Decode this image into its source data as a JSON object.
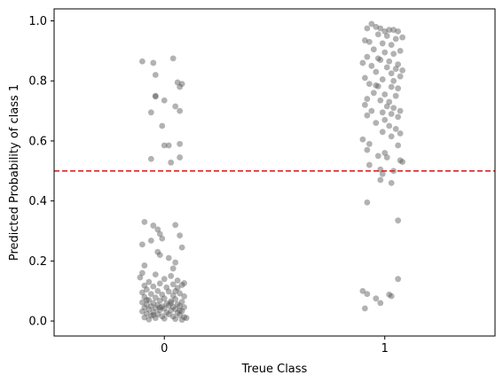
{
  "chart_data": {
    "type": "scatter",
    "title": "",
    "xlabel": "Treue Class",
    "ylabel": "Predicted Probability of class 1",
    "x_ticks": [
      "0",
      "1"
    ],
    "y_ticks": [
      "0.0",
      "0.2",
      "0.4",
      "0.6",
      "0.8",
      "1.0"
    ],
    "xlim": [
      -0.5,
      1.5
    ],
    "ylim": [
      -0.05,
      1.04
    ],
    "grid": false,
    "threshold": {
      "y": 0.5,
      "color": "#d62728",
      "style": "dashed"
    },
    "point_color": "#555555",
    "point_opacity": 0.45,
    "points": [
      {
        "x": -0.1,
        "y": 0.865
      },
      {
        "x": -0.05,
        "y": 0.86
      },
      {
        "x": 0.04,
        "y": 0.875
      },
      {
        "x": -0.04,
        "y": 0.82
      },
      {
        "x": 0.06,
        "y": 0.795
      },
      {
        "x": 0.08,
        "y": 0.79
      },
      {
        "x": 0.07,
        "y": 0.78
      },
      {
        "x": -0.04,
        "y": 0.75
      },
      {
        "x": -0.04,
        "y": 0.748
      },
      {
        "x": 0.0,
        "y": 0.735
      },
      {
        "x": 0.05,
        "y": 0.715
      },
      {
        "x": -0.06,
        "y": 0.695
      },
      {
        "x": 0.07,
        "y": 0.7
      },
      {
        "x": -0.01,
        "y": 0.65
      },
      {
        "x": 0.0,
        "y": 0.585
      },
      {
        "x": 0.02,
        "y": 0.585
      },
      {
        "x": 0.07,
        "y": 0.59
      },
      {
        "x": -0.06,
        "y": 0.54
      },
      {
        "x": 0.07,
        "y": 0.545
      },
      {
        "x": 0.03,
        "y": 0.528
      },
      {
        "x": -0.09,
        "y": 0.33
      },
      {
        "x": -0.05,
        "y": 0.318
      },
      {
        "x": 0.05,
        "y": 0.32
      },
      {
        "x": -0.03,
        "y": 0.305
      },
      {
        "x": -0.02,
        "y": 0.29
      },
      {
        "x": 0.07,
        "y": 0.285
      },
      {
        "x": -0.01,
        "y": 0.275
      },
      {
        "x": -0.06,
        "y": 0.268
      },
      {
        "x": -0.1,
        "y": 0.255
      },
      {
        "x": 0.08,
        "y": 0.245
      },
      {
        "x": -0.03,
        "y": 0.23
      },
      {
        "x": -0.02,
        "y": 0.22
      },
      {
        "x": 0.02,
        "y": 0.21
      },
      {
        "x": 0.05,
        "y": 0.195
      },
      {
        "x": -0.09,
        "y": 0.185
      },
      {
        "x": 0.04,
        "y": 0.175
      },
      {
        "x": -0.1,
        "y": 0.16
      },
      {
        "x": -0.04,
        "y": 0.155
      },
      {
        "x": 0.03,
        "y": 0.15
      },
      {
        "x": -0.11,
        "y": 0.145
      },
      {
        "x": 0.0,
        "y": 0.14
      },
      {
        "x": 0.06,
        "y": 0.135
      },
      {
        "x": -0.07,
        "y": 0.13
      },
      {
        "x": -0.02,
        "y": 0.125
      },
      {
        "x": 0.04,
        "y": 0.122
      },
      {
        "x": 0.08,
        "y": 0.12
      },
      {
        "x": 0.09,
        "y": 0.126
      },
      {
        "x": -0.09,
        "y": 0.118
      },
      {
        "x": -0.05,
        "y": 0.115
      },
      {
        "x": 0.01,
        "y": 0.112
      },
      {
        "x": 0.06,
        "y": 0.11
      },
      {
        "x": -0.08,
        "y": 0.105
      },
      {
        "x": -0.03,
        "y": 0.1
      },
      {
        "x": 0.02,
        "y": 0.098
      },
      {
        "x": -0.1,
        "y": 0.095
      },
      {
        "x": 0.07,
        "y": 0.092
      },
      {
        "x": -0.06,
        "y": 0.09
      },
      {
        "x": -0.01,
        "y": 0.088
      },
      {
        "x": 0.04,
        "y": 0.085
      },
      {
        "x": 0.09,
        "y": 0.082
      },
      {
        "x": -0.09,
        "y": 0.08
      },
      {
        "x": -0.04,
        "y": 0.078
      },
      {
        "x": 0.0,
        "y": 0.075
      },
      {
        "x": 0.05,
        "y": 0.073
      },
      {
        "x": -0.07,
        "y": 0.07
      },
      {
        "x": -0.02,
        "y": 0.068
      },
      {
        "x": 0.03,
        "y": 0.066
      },
      {
        "x": 0.08,
        "y": 0.064
      },
      {
        "x": -0.1,
        "y": 0.062
      },
      {
        "x": -0.05,
        "y": 0.06
      },
      {
        "x": 0.01,
        "y": 0.058
      },
      {
        "x": 0.06,
        "y": 0.056
      },
      {
        "x": -0.08,
        "y": 0.055
      },
      {
        "x": -0.03,
        "y": 0.053
      },
      {
        "x": 0.02,
        "y": 0.052
      },
      {
        "x": 0.07,
        "y": 0.05
      },
      {
        "x": -0.06,
        "y": 0.049
      },
      {
        "x": -0.01,
        "y": 0.048
      },
      {
        "x": 0.04,
        "y": 0.047
      },
      {
        "x": 0.09,
        "y": 0.046
      },
      {
        "x": -0.09,
        "y": 0.045
      },
      {
        "x": -0.04,
        "y": 0.043
      },
      {
        "x": 0.0,
        "y": 0.042
      },
      {
        "x": 0.05,
        "y": 0.04
      },
      {
        "x": -0.07,
        "y": 0.038
      },
      {
        "x": -0.02,
        "y": 0.036
      },
      {
        "x": 0.03,
        "y": 0.035
      },
      {
        "x": 0.08,
        "y": 0.033
      },
      {
        "x": -0.1,
        "y": 0.032
      },
      {
        "x": -0.05,
        "y": 0.03
      },
      {
        "x": 0.01,
        "y": 0.028
      },
      {
        "x": 0.06,
        "y": 0.027
      },
      {
        "x": -0.08,
        "y": 0.025
      },
      {
        "x": -0.03,
        "y": 0.023
      },
      {
        "x": 0.02,
        "y": 0.022
      },
      {
        "x": 0.07,
        "y": 0.02
      },
      {
        "x": -0.06,
        "y": 0.018
      },
      {
        "x": -0.01,
        "y": 0.016
      },
      {
        "x": 0.04,
        "y": 0.015
      },
      {
        "x": 0.09,
        "y": 0.013
      },
      {
        "x": -0.09,
        "y": 0.012
      },
      {
        "x": -0.04,
        "y": 0.01
      },
      {
        "x": 0.0,
        "y": 0.008
      },
      {
        "x": 0.05,
        "y": 0.007
      },
      {
        "x": -0.07,
        "y": 0.005
      },
      {
        "x": 0.08,
        "y": 0.004
      },
      {
        "x": 0.1,
        "y": 0.01
      },
      {
        "x": -0.02,
        "y": 0.045
      },
      {
        "x": 0.03,
        "y": 0.06
      },
      {
        "x": -0.05,
        "y": 0.02
      },
      {
        "x": 0.07,
        "y": 0.035
      },
      {
        "x": -0.08,
        "y": 0.07
      },
      {
        "x": 0.05,
        "y": 0.1
      },
      {
        "x": 0.92,
        "y": 0.975
      },
      {
        "x": 0.94,
        "y": 0.99
      },
      {
        "x": 0.96,
        "y": 0.98
      },
      {
        "x": 0.98,
        "y": 0.975
      },
      {
        "x": 1.0,
        "y": 0.965
      },
      {
        "x": 1.02,
        "y": 0.97
      },
      {
        "x": 1.04,
        "y": 0.97
      },
      {
        "x": 1.06,
        "y": 0.965
      },
      {
        "x": 1.08,
        "y": 0.945
      },
      {
        "x": 0.97,
        "y": 0.955
      },
      {
        "x": 1.01,
        "y": 0.95
      },
      {
        "x": 1.05,
        "y": 0.94
      },
      {
        "x": 0.91,
        "y": 0.935
      },
      {
        "x": 0.93,
        "y": 0.93
      },
      {
        "x": 0.99,
        "y": 0.925
      },
      {
        "x": 1.03,
        "y": 0.92
      },
      {
        "x": 0.95,
        "y": 0.905
      },
      {
        "x": 1.07,
        "y": 0.9
      },
      {
        "x": 1.0,
        "y": 0.895
      },
      {
        "x": 1.04,
        "y": 0.89
      },
      {
        "x": 0.92,
        "y": 0.88
      },
      {
        "x": 0.97,
        "y": 0.875
      },
      {
        "x": 0.98,
        "y": 0.87
      },
      {
        "x": 1.02,
        "y": 0.865
      },
      {
        "x": 0.9,
        "y": 0.86
      },
      {
        "x": 1.06,
        "y": 0.855
      },
      {
        "x": 0.94,
        "y": 0.85
      },
      {
        "x": 1.01,
        "y": 0.845
      },
      {
        "x": 1.05,
        "y": 0.84
      },
      {
        "x": 1.08,
        "y": 0.835
      },
      {
        "x": 0.96,
        "y": 0.83
      },
      {
        "x": 1.03,
        "y": 0.825
      },
      {
        "x": 1.07,
        "y": 0.815
      },
      {
        "x": 0.91,
        "y": 0.81
      },
      {
        "x": 0.99,
        "y": 0.805
      },
      {
        "x": 1.04,
        "y": 0.8
      },
      {
        "x": 0.93,
        "y": 0.79
      },
      {
        "x": 0.96,
        "y": 0.785
      },
      {
        "x": 0.97,
        "y": 0.782
      },
      {
        "x": 1.03,
        "y": 0.78
      },
      {
        "x": 1.06,
        "y": 0.775
      },
      {
        "x": 0.95,
        "y": 0.76
      },
      {
        "x": 1.0,
        "y": 0.755
      },
      {
        "x": 1.05,
        "y": 0.75
      },
      {
        "x": 0.92,
        "y": 0.74
      },
      {
        "x": 0.98,
        "y": 0.735
      },
      {
        "x": 1.02,
        "y": 0.73
      },
      {
        "x": 0.91,
        "y": 0.72
      },
      {
        "x": 1.01,
        "y": 0.715
      },
      {
        "x": 1.04,
        "y": 0.71
      },
      {
        "x": 0.94,
        "y": 0.7
      },
      {
        "x": 1.07,
        "y": 0.7
      },
      {
        "x": 0.99,
        "y": 0.695
      },
      {
        "x": 1.03,
        "y": 0.69
      },
      {
        "x": 0.92,
        "y": 0.685
      },
      {
        "x": 1.06,
        "y": 0.68
      },
      {
        "x": 1.0,
        "y": 0.67
      },
      {
        "x": 0.96,
        "y": 0.66
      },
      {
        "x": 1.02,
        "y": 0.65
      },
      {
        "x": 1.05,
        "y": 0.64
      },
      {
        "x": 0.99,
        "y": 0.63
      },
      {
        "x": 1.07,
        "y": 0.625
      },
      {
        "x": 1.03,
        "y": 0.615
      },
      {
        "x": 0.9,
        "y": 0.605
      },
      {
        "x": 0.93,
        "y": 0.59
      },
      {
        "x": 1.06,
        "y": 0.585
      },
      {
        "x": 0.92,
        "y": 0.57
      },
      {
        "x": 1.0,
        "y": 0.56
      },
      {
        "x": 0.97,
        "y": 0.55
      },
      {
        "x": 1.01,
        "y": 0.545
      },
      {
        "x": 1.07,
        "y": 0.535
      },
      {
        "x": 1.08,
        "y": 0.53
      },
      {
        "x": 0.93,
        "y": 0.52
      },
      {
        "x": 0.98,
        "y": 0.505
      },
      {
        "x": 1.04,
        "y": 0.5
      },
      {
        "x": 0.99,
        "y": 0.49
      },
      {
        "x": 0.98,
        "y": 0.47
      },
      {
        "x": 1.03,
        "y": 0.46
      },
      {
        "x": 0.92,
        "y": 0.395
      },
      {
        "x": 1.06,
        "y": 0.335
      },
      {
        "x": 1.06,
        "y": 0.14
      },
      {
        "x": 0.9,
        "y": 0.1
      },
      {
        "x": 0.92,
        "y": 0.09
      },
      {
        "x": 1.02,
        "y": 0.088
      },
      {
        "x": 1.03,
        "y": 0.083
      },
      {
        "x": 0.96,
        "y": 0.075
      },
      {
        "x": 0.98,
        "y": 0.06
      },
      {
        "x": 0.91,
        "y": 0.042
      }
    ]
  }
}
